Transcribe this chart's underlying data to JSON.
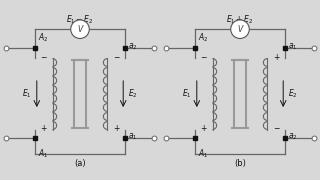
{
  "bg_color": "#d8d8d8",
  "line_color": "#666666",
  "text_color": "#111111",
  "dot_color": "#111111",
  "diagram_a": {
    "label": "(a)",
    "voltmeter_label": "$E_1 - E_2$",
    "top_left_label": "$A_2$",
    "top_right_label": "$a_2$",
    "bot_left_label": "$A_1$",
    "bot_right_label": "$a_1$",
    "E1_label": "$E_1$",
    "E2_label": "$E_2$",
    "top_left_polarity": "−",
    "top_right_polarity": "−",
    "bot_left_polarity": "+",
    "bot_right_polarity": "+"
  },
  "diagram_b": {
    "label": "(b)",
    "voltmeter_label": "$E_1 + E_2$",
    "top_left_label": "$A_2$",
    "top_right_label": "$a_1$",
    "bot_left_label": "$A_1$",
    "bot_right_label": "$a_2$",
    "E1_label": "$E_1$",
    "E2_label": "$E_2$",
    "top_left_polarity": "−",
    "top_right_polarity": "+",
    "bot_left_polarity": "+",
    "bot_right_polarity": "−"
  }
}
